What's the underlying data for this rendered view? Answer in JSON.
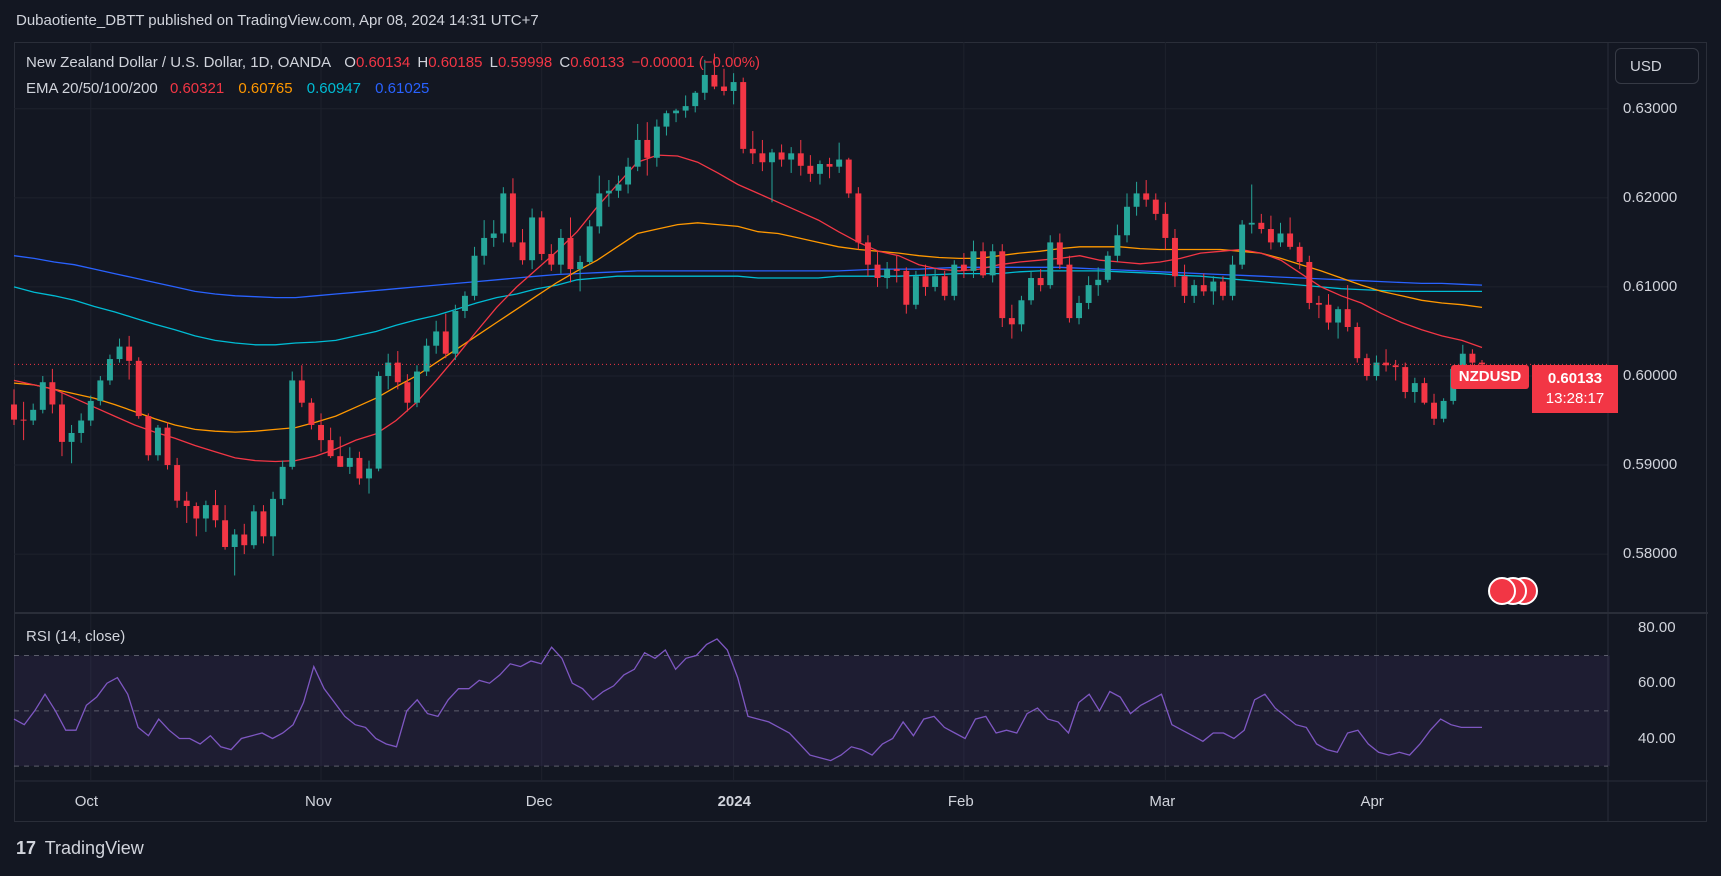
{
  "publisher": "Dubaotiente_DBTT published on TradingView.com, Apr 08, 2024 14:31 UTC+7",
  "legend": {
    "symbol": "New Zealand Dollar / U.S. Dollar, 1D, OANDA",
    "o_label": "O",
    "o": "0.60134",
    "h_label": "H",
    "h": "0.60185",
    "l_label": "L",
    "l": "0.59998",
    "c_label": "C",
    "c": "0.60133",
    "change": "−0.00001 (−0.00%)",
    "ema_label": "EMA 20/50/100/200",
    "ema20": "0.60321",
    "ema50": "0.60765",
    "ema100": "0.60947",
    "ema200": "0.61025"
  },
  "currency_button": "USD",
  "price_tag": {
    "symbol": "NZDUSD",
    "price": "0.60133",
    "countdown": "13:28:17"
  },
  "rsi_label": "RSI (14, close)",
  "footer": {
    "logo": "17",
    "brand": "TradingView"
  },
  "colors": {
    "up": "#26a69a",
    "down": "#f23645",
    "ema20": "#f23645",
    "ema50": "#ff9800",
    "ema100": "#00bcd4",
    "ema200": "#2962ff",
    "rsi": "#7e57c2"
  },
  "chart_data": {
    "type": "candlestick",
    "y_ticks": [
      "0.63000",
      "0.62000",
      "0.61000",
      "0.60000",
      "0.59000",
      "0.58000"
    ],
    "rsi_ticks": [
      "80.00",
      "60.00",
      "40.00"
    ],
    "x_ticks": [
      "Oct",
      "Nov",
      "Dec",
      "2024",
      "Feb",
      "Mar",
      "Apr"
    ],
    "ylim": [
      0.5735,
      0.6375
    ],
    "rsi_ylim": [
      25,
      85
    ],
    "ohlc": [
      [
        0.5968,
        0.5985,
        0.5945,
        0.5951
      ],
      [
        0.5951,
        0.5971,
        0.5928,
        0.595
      ],
      [
        0.595,
        0.5969,
        0.5945,
        0.5962
      ],
      [
        0.5962,
        0.6,
        0.5958,
        0.5993
      ],
      [
        0.5993,
        0.6008,
        0.5958,
        0.5968
      ],
      [
        0.5968,
        0.5982,
        0.591,
        0.5926
      ],
      [
        0.5926,
        0.5945,
        0.5902,
        0.5936
      ],
      [
        0.5936,
        0.5958,
        0.5925,
        0.595
      ],
      [
        0.595,
        0.5978,
        0.5944,
        0.5972
      ],
      [
        0.5972,
        0.6,
        0.5967,
        0.5995
      ],
      [
        0.5995,
        0.6024,
        0.599,
        0.6019
      ],
      [
        0.6019,
        0.6042,
        0.6015,
        0.6033
      ],
      [
        0.6033,
        0.6045,
        0.5996,
        0.6017
      ],
      [
        0.6017,
        0.6021,
        0.5952,
        0.5955
      ],
      [
        0.5955,
        0.5958,
        0.5905,
        0.5911
      ],
      [
        0.5911,
        0.5945,
        0.5905,
        0.5942
      ],
      [
        0.5942,
        0.5948,
        0.5895,
        0.59
      ],
      [
        0.59,
        0.5908,
        0.5852,
        0.586
      ],
      [
        0.586,
        0.587,
        0.5835,
        0.5854
      ],
      [
        0.5854,
        0.5858,
        0.582,
        0.584
      ],
      [
        0.584,
        0.586,
        0.5825,
        0.5855
      ],
      [
        0.5855,
        0.5872,
        0.583,
        0.5838
      ],
      [
        0.5838,
        0.5855,
        0.5805,
        0.5808
      ],
      [
        0.5808,
        0.5828,
        0.5776,
        0.5822
      ],
      [
        0.5822,
        0.5834,
        0.58,
        0.581
      ],
      [
        0.581,
        0.5855,
        0.5806,
        0.5848
      ],
      [
        0.5848,
        0.5855,
        0.5812,
        0.582
      ],
      [
        0.582,
        0.587,
        0.5798,
        0.5862
      ],
      [
        0.5862,
        0.5905,
        0.5855,
        0.5898
      ],
      [
        0.5898,
        0.6005,
        0.5895,
        0.5995
      ],
      [
        0.5995,
        0.6012,
        0.5965,
        0.597
      ],
      [
        0.597,
        0.5975,
        0.594,
        0.5945
      ],
      [
        0.5945,
        0.5958,
        0.5915,
        0.5928
      ],
      [
        0.5928,
        0.5942,
        0.5908,
        0.591
      ],
      [
        0.591,
        0.5932,
        0.5898,
        0.5898
      ],
      [
        0.5898,
        0.592,
        0.589,
        0.5908
      ],
      [
        0.5908,
        0.5915,
        0.5878,
        0.5885
      ],
      [
        0.5885,
        0.5905,
        0.5868,
        0.5896
      ],
      [
        0.5896,
        0.6005,
        0.5893,
        0.6
      ],
      [
        0.6,
        0.6025,
        0.5985,
        0.6015
      ],
      [
        0.6015,
        0.6028,
        0.5985,
        0.5993
      ],
      [
        0.5993,
        0.6002,
        0.596,
        0.597
      ],
      [
        0.597,
        0.6012,
        0.5965,
        0.6005
      ],
      [
        0.6005,
        0.6042,
        0.6,
        0.6034
      ],
      [
        0.6034,
        0.6062,
        0.6025,
        0.605
      ],
      [
        0.605,
        0.607,
        0.602,
        0.6025
      ],
      [
        0.6025,
        0.608,
        0.6018,
        0.6073
      ],
      [
        0.6073,
        0.6095,
        0.6065,
        0.609
      ],
      [
        0.609,
        0.6145,
        0.6085,
        0.6135
      ],
      [
        0.6135,
        0.6175,
        0.6125,
        0.6155
      ],
      [
        0.6155,
        0.6175,
        0.6145,
        0.616
      ],
      [
        0.616,
        0.6212,
        0.615,
        0.6205
      ],
      [
        0.6205,
        0.6222,
        0.6145,
        0.615
      ],
      [
        0.615,
        0.6165,
        0.6125,
        0.613
      ],
      [
        0.613,
        0.6188,
        0.612,
        0.6178
      ],
      [
        0.6178,
        0.6185,
        0.613,
        0.6137
      ],
      [
        0.6137,
        0.6148,
        0.6118,
        0.6125
      ],
      [
        0.6125,
        0.6165,
        0.6115,
        0.6155
      ],
      [
        0.6155,
        0.6178,
        0.6105,
        0.612
      ],
      [
        0.612,
        0.6135,
        0.6095,
        0.6128
      ],
      [
        0.6128,
        0.6175,
        0.6125,
        0.6168
      ],
      [
        0.6168,
        0.6225,
        0.616,
        0.6205
      ],
      [
        0.6205,
        0.622,
        0.619,
        0.6208
      ],
      [
        0.6208,
        0.6225,
        0.62,
        0.6215
      ],
      [
        0.6215,
        0.6245,
        0.6205,
        0.6235
      ],
      [
        0.6235,
        0.6283,
        0.623,
        0.6265
      ],
      [
        0.6265,
        0.6285,
        0.6225,
        0.6245
      ],
      [
        0.6245,
        0.6288,
        0.6235,
        0.628
      ],
      [
        0.628,
        0.6298,
        0.627,
        0.6295
      ],
      [
        0.6295,
        0.63,
        0.6285,
        0.6298
      ],
      [
        0.6298,
        0.6315,
        0.629,
        0.6303
      ],
      [
        0.6303,
        0.632,
        0.6296,
        0.6318
      ],
      [
        0.6318,
        0.6355,
        0.631,
        0.6338
      ],
      [
        0.6338,
        0.6362,
        0.6322,
        0.6325
      ],
      [
        0.6325,
        0.6345,
        0.6315,
        0.632
      ],
      [
        0.632,
        0.634,
        0.6305,
        0.633
      ],
      [
        0.633,
        0.6335,
        0.625,
        0.6255
      ],
      [
        0.6255,
        0.6275,
        0.6238,
        0.625
      ],
      [
        0.625,
        0.6265,
        0.623,
        0.624
      ],
      [
        0.624,
        0.6255,
        0.6195,
        0.6251
      ],
      [
        0.6251,
        0.626,
        0.6235,
        0.6243
      ],
      [
        0.6243,
        0.6257,
        0.6228,
        0.625
      ],
      [
        0.625,
        0.6265,
        0.6225,
        0.6236
      ],
      [
        0.6236,
        0.6248,
        0.6218,
        0.6227
      ],
      [
        0.6227,
        0.6242,
        0.6215,
        0.6238
      ],
      [
        0.6238,
        0.6245,
        0.6222,
        0.6235
      ],
      [
        0.6235,
        0.6262,
        0.6228,
        0.6243
      ],
      [
        0.6243,
        0.6245,
        0.62,
        0.6205
      ],
      [
        0.6205,
        0.6212,
        0.6142,
        0.615
      ],
      [
        0.615,
        0.6158,
        0.6112,
        0.6125
      ],
      [
        0.6125,
        0.614,
        0.61,
        0.611
      ],
      [
        0.611,
        0.6128,
        0.6098,
        0.612
      ],
      [
        0.612,
        0.6135,
        0.6105,
        0.6118
      ],
      [
        0.6118,
        0.6122,
        0.607,
        0.608
      ],
      [
        0.608,
        0.6118,
        0.6075,
        0.6112
      ],
      [
        0.6112,
        0.6125,
        0.609,
        0.61
      ],
      [
        0.61,
        0.612,
        0.6095,
        0.6112
      ],
      [
        0.6112,
        0.6118,
        0.6085,
        0.609
      ],
      [
        0.609,
        0.613,
        0.6085,
        0.6125
      ],
      [
        0.6125,
        0.6138,
        0.611,
        0.6118
      ],
      [
        0.6118,
        0.6152,
        0.611,
        0.614
      ],
      [
        0.614,
        0.615,
        0.611,
        0.6113
      ],
      [
        0.6113,
        0.6148,
        0.6105,
        0.614
      ],
      [
        0.614,
        0.6148,
        0.6055,
        0.6065
      ],
      [
        0.6065,
        0.608,
        0.6042,
        0.6058
      ],
      [
        0.6058,
        0.609,
        0.605,
        0.6085
      ],
      [
        0.6085,
        0.6118,
        0.608,
        0.611
      ],
      [
        0.611,
        0.612,
        0.6095,
        0.6102
      ],
      [
        0.6102,
        0.6158,
        0.6098,
        0.615
      ],
      [
        0.615,
        0.616,
        0.612,
        0.6125
      ],
      [
        0.6125,
        0.6135,
        0.606,
        0.6065
      ],
      [
        0.6065,
        0.609,
        0.6058,
        0.6082
      ],
      [
        0.6082,
        0.6112,
        0.6075,
        0.6102
      ],
      [
        0.6102,
        0.6122,
        0.609,
        0.6108
      ],
      [
        0.6108,
        0.614,
        0.6105,
        0.6135
      ],
      [
        0.6135,
        0.617,
        0.6128,
        0.6158
      ],
      [
        0.6158,
        0.6205,
        0.615,
        0.619
      ],
      [
        0.619,
        0.6218,
        0.618,
        0.6205
      ],
      [
        0.6205,
        0.622,
        0.619,
        0.6198
      ],
      [
        0.6198,
        0.6205,
        0.6175,
        0.6182
      ],
      [
        0.6182,
        0.6195,
        0.6142,
        0.6155
      ],
      [
        0.6155,
        0.6165,
        0.61,
        0.6112
      ],
      [
        0.6112,
        0.6125,
        0.6082,
        0.609
      ],
      [
        0.609,
        0.6108,
        0.6082,
        0.6102
      ],
      [
        0.6102,
        0.6115,
        0.609,
        0.6095
      ],
      [
        0.6095,
        0.6112,
        0.608,
        0.6106
      ],
      [
        0.6106,
        0.6112,
        0.6085,
        0.609
      ],
      [
        0.609,
        0.6135,
        0.6085,
        0.6125
      ],
      [
        0.6125,
        0.6175,
        0.612,
        0.617
      ],
      [
        0.617,
        0.6215,
        0.616,
        0.6172
      ],
      [
        0.6172,
        0.6182,
        0.616,
        0.6165
      ],
      [
        0.6165,
        0.618,
        0.6142,
        0.615
      ],
      [
        0.615,
        0.6172,
        0.6145,
        0.616
      ],
      [
        0.616,
        0.6178,
        0.6142,
        0.6145
      ],
      [
        0.6145,
        0.615,
        0.612,
        0.6128
      ],
      [
        0.6128,
        0.6135,
        0.6075,
        0.6082
      ],
      [
        0.6082,
        0.609,
        0.6065,
        0.608
      ],
      [
        0.608,
        0.6092,
        0.6052,
        0.606
      ],
      [
        0.606,
        0.6078,
        0.6042,
        0.6075
      ],
      [
        0.6075,
        0.6102,
        0.605,
        0.6055
      ],
      [
        0.6055,
        0.606,
        0.6015,
        0.602
      ],
      [
        0.602,
        0.6025,
        0.5995,
        0.6
      ],
      [
        0.6,
        0.6023,
        0.5995,
        0.6015
      ],
      [
        0.6015,
        0.603,
        0.6005,
        0.6012
      ],
      [
        0.6012,
        0.6018,
        0.5995,
        0.601
      ],
      [
        0.601,
        0.6015,
        0.5975,
        0.5982
      ],
      [
        0.5982,
        0.5998,
        0.597,
        0.5992
      ],
      [
        0.5992,
        0.5998,
        0.5968,
        0.597
      ],
      [
        0.597,
        0.598,
        0.5945,
        0.5952
      ],
      [
        0.5952,
        0.5975,
        0.5948,
        0.5972
      ],
      [
        0.5972,
        0.6012,
        0.5968,
        0.6008
      ],
      [
        0.6008,
        0.6035,
        0.6002,
        0.6025
      ],
      [
        0.6025,
        0.603,
        0.6005,
        0.6015
      ],
      [
        0.6015,
        0.6018,
        0.6,
        0.6013
      ]
    ],
    "ema20": [
      0.5995,
      0.599,
      0.5985,
      0.5975,
      0.5965,
      0.5955,
      0.5945,
      0.5937,
      0.593,
      0.5922,
      0.5915,
      0.5908,
      0.5905,
      0.5904,
      0.5905,
      0.591,
      0.5918,
      0.5928,
      0.5935,
      0.595,
      0.597,
      0.5995,
      0.6022,
      0.605,
      0.6077,
      0.61,
      0.612,
      0.614,
      0.6162,
      0.619,
      0.6215,
      0.624,
      0.6248,
      0.6247,
      0.624,
      0.6228,
      0.6215,
      0.6205,
      0.6195,
      0.6185,
      0.6175,
      0.6162,
      0.615,
      0.614,
      0.6135,
      0.6125,
      0.612,
      0.6118,
      0.612,
      0.6125,
      0.6128,
      0.613,
      0.6132,
      0.6135,
      0.613,
      0.6128,
      0.6126,
      0.6128,
      0.6132,
      0.6138,
      0.614,
      0.6142,
      0.6138,
      0.613,
      0.6115,
      0.61,
      0.609,
      0.6082,
      0.607,
      0.606,
      0.6052,
      0.6045,
      0.604,
      0.6032
    ],
    "ema50": [
      0.5992,
      0.599,
      0.5985,
      0.598,
      0.5975,
      0.5968,
      0.596,
      0.5952,
      0.5945,
      0.594,
      0.5938,
      0.5937,
      0.5938,
      0.594,
      0.5942,
      0.5948,
      0.5955,
      0.5965,
      0.5975,
      0.5988,
      0.6,
      0.6015,
      0.603,
      0.6045,
      0.606,
      0.6075,
      0.609,
      0.6105,
      0.6118,
      0.613,
      0.6145,
      0.616,
      0.6165,
      0.617,
      0.6172,
      0.617,
      0.6168,
      0.6162,
      0.616,
      0.6155,
      0.615,
      0.6145,
      0.6142,
      0.614,
      0.6138,
      0.6135,
      0.6133,
      0.6132,
      0.6132,
      0.6135,
      0.6138,
      0.614,
      0.6143,
      0.6145,
      0.6145,
      0.6145,
      0.6143,
      0.6142,
      0.6142,
      0.6142,
      0.6142,
      0.614,
      0.6138,
      0.6132,
      0.6125,
      0.6118,
      0.611,
      0.6102,
      0.6095,
      0.609,
      0.6085,
      0.6082,
      0.608,
      0.6077
    ],
    "ema100": [
      0.61,
      0.6094,
      0.609,
      0.6085,
      0.6078,
      0.6072,
      0.6065,
      0.6058,
      0.6052,
      0.6045,
      0.604,
      0.6037,
      0.6035,
      0.6035,
      0.6037,
      0.6038,
      0.604,
      0.6045,
      0.605,
      0.6057,
      0.6063,
      0.6068,
      0.6075,
      0.6082,
      0.6088,
      0.6092,
      0.6098,
      0.6102,
      0.6108,
      0.611,
      0.6112,
      0.6112,
      0.6112,
      0.6112,
      0.6112,
      0.6112,
      0.6112,
      0.611,
      0.611,
      0.611,
      0.611,
      0.6112,
      0.6112,
      0.6112,
      0.6112,
      0.6113,
      0.6114,
      0.6115,
      0.6115,
      0.6115,
      0.6117,
      0.6118,
      0.6118,
      0.6118,
      0.6118,
      0.6117,
      0.6116,
      0.6115,
      0.6113,
      0.6112,
      0.611,
      0.6108,
      0.6106,
      0.6104,
      0.6102,
      0.61,
      0.6098,
      0.6097,
      0.6096,
      0.6095,
      0.6095,
      0.6095,
      0.6095,
      0.6095
    ],
    "ema200": [
      0.6135,
      0.6132,
      0.6128,
      0.6125,
      0.612,
      0.6115,
      0.611,
      0.6105,
      0.61,
      0.6095,
      0.6092,
      0.609,
      0.6089,
      0.6088,
      0.6088,
      0.609,
      0.6092,
      0.6094,
      0.6096,
      0.6098,
      0.61,
      0.6102,
      0.6104,
      0.6106,
      0.6108,
      0.611,
      0.6112,
      0.6114,
      0.6115,
      0.6116,
      0.6117,
      0.6118,
      0.6118,
      0.6118,
      0.6118,
      0.6118,
      0.6118,
      0.6118,
      0.6118,
      0.6118,
      0.6118,
      0.6118,
      0.6119,
      0.612,
      0.612,
      0.612,
      0.6121,
      0.6122,
      0.6122,
      0.6122,
      0.6122,
      0.6122,
      0.6122,
      0.6121,
      0.612,
      0.6119,
      0.6118,
      0.6117,
      0.6116,
      0.6115,
      0.6114,
      0.6113,
      0.6112,
      0.6111,
      0.611,
      0.6109,
      0.6108,
      0.6107,
      0.6106,
      0.6105,
      0.6104,
      0.6104,
      0.6103,
      0.6102
    ],
    "rsi": [
      47,
      45,
      50,
      56,
      50,
      43,
      43,
      52,
      55,
      60,
      62,
      56,
      44,
      41,
      47,
      43,
      40,
      40,
      38,
      41,
      37,
      36,
      40,
      41,
      42,
      40,
      42,
      45,
      53,
      66,
      58,
      53,
      48,
      45,
      44,
      40,
      38,
      37,
      50,
      54,
      49,
      48,
      54,
      58,
      58,
      61,
      60,
      63,
      67,
      66,
      68,
      67,
      73,
      69,
      60,
      58,
      54,
      57,
      59,
      63,
      65,
      71,
      69,
      72,
      65,
      69,
      70,
      74,
      76,
      72,
      62,
      48,
      47,
      46,
      44,
      42,
      38,
      34,
      33,
      32,
      34,
      37,
      36,
      34,
      38,
      40,
      46,
      41,
      47,
      48,
      44,
      42,
      40,
      47,
      48,
      42,
      43,
      42,
      49,
      51,
      47,
      46,
      42,
      53,
      56,
      50,
      57,
      55,
      49,
      52,
      54,
      56,
      45,
      43,
      41,
      39,
      42,
      42,
      40,
      43,
      54,
      56,
      51,
      48,
      45,
      44,
      38,
      36,
      35,
      42,
      43,
      38,
      35,
      34,
      35,
      34,
      38,
      43,
      47,
      45,
      44,
      44,
      44
    ]
  }
}
